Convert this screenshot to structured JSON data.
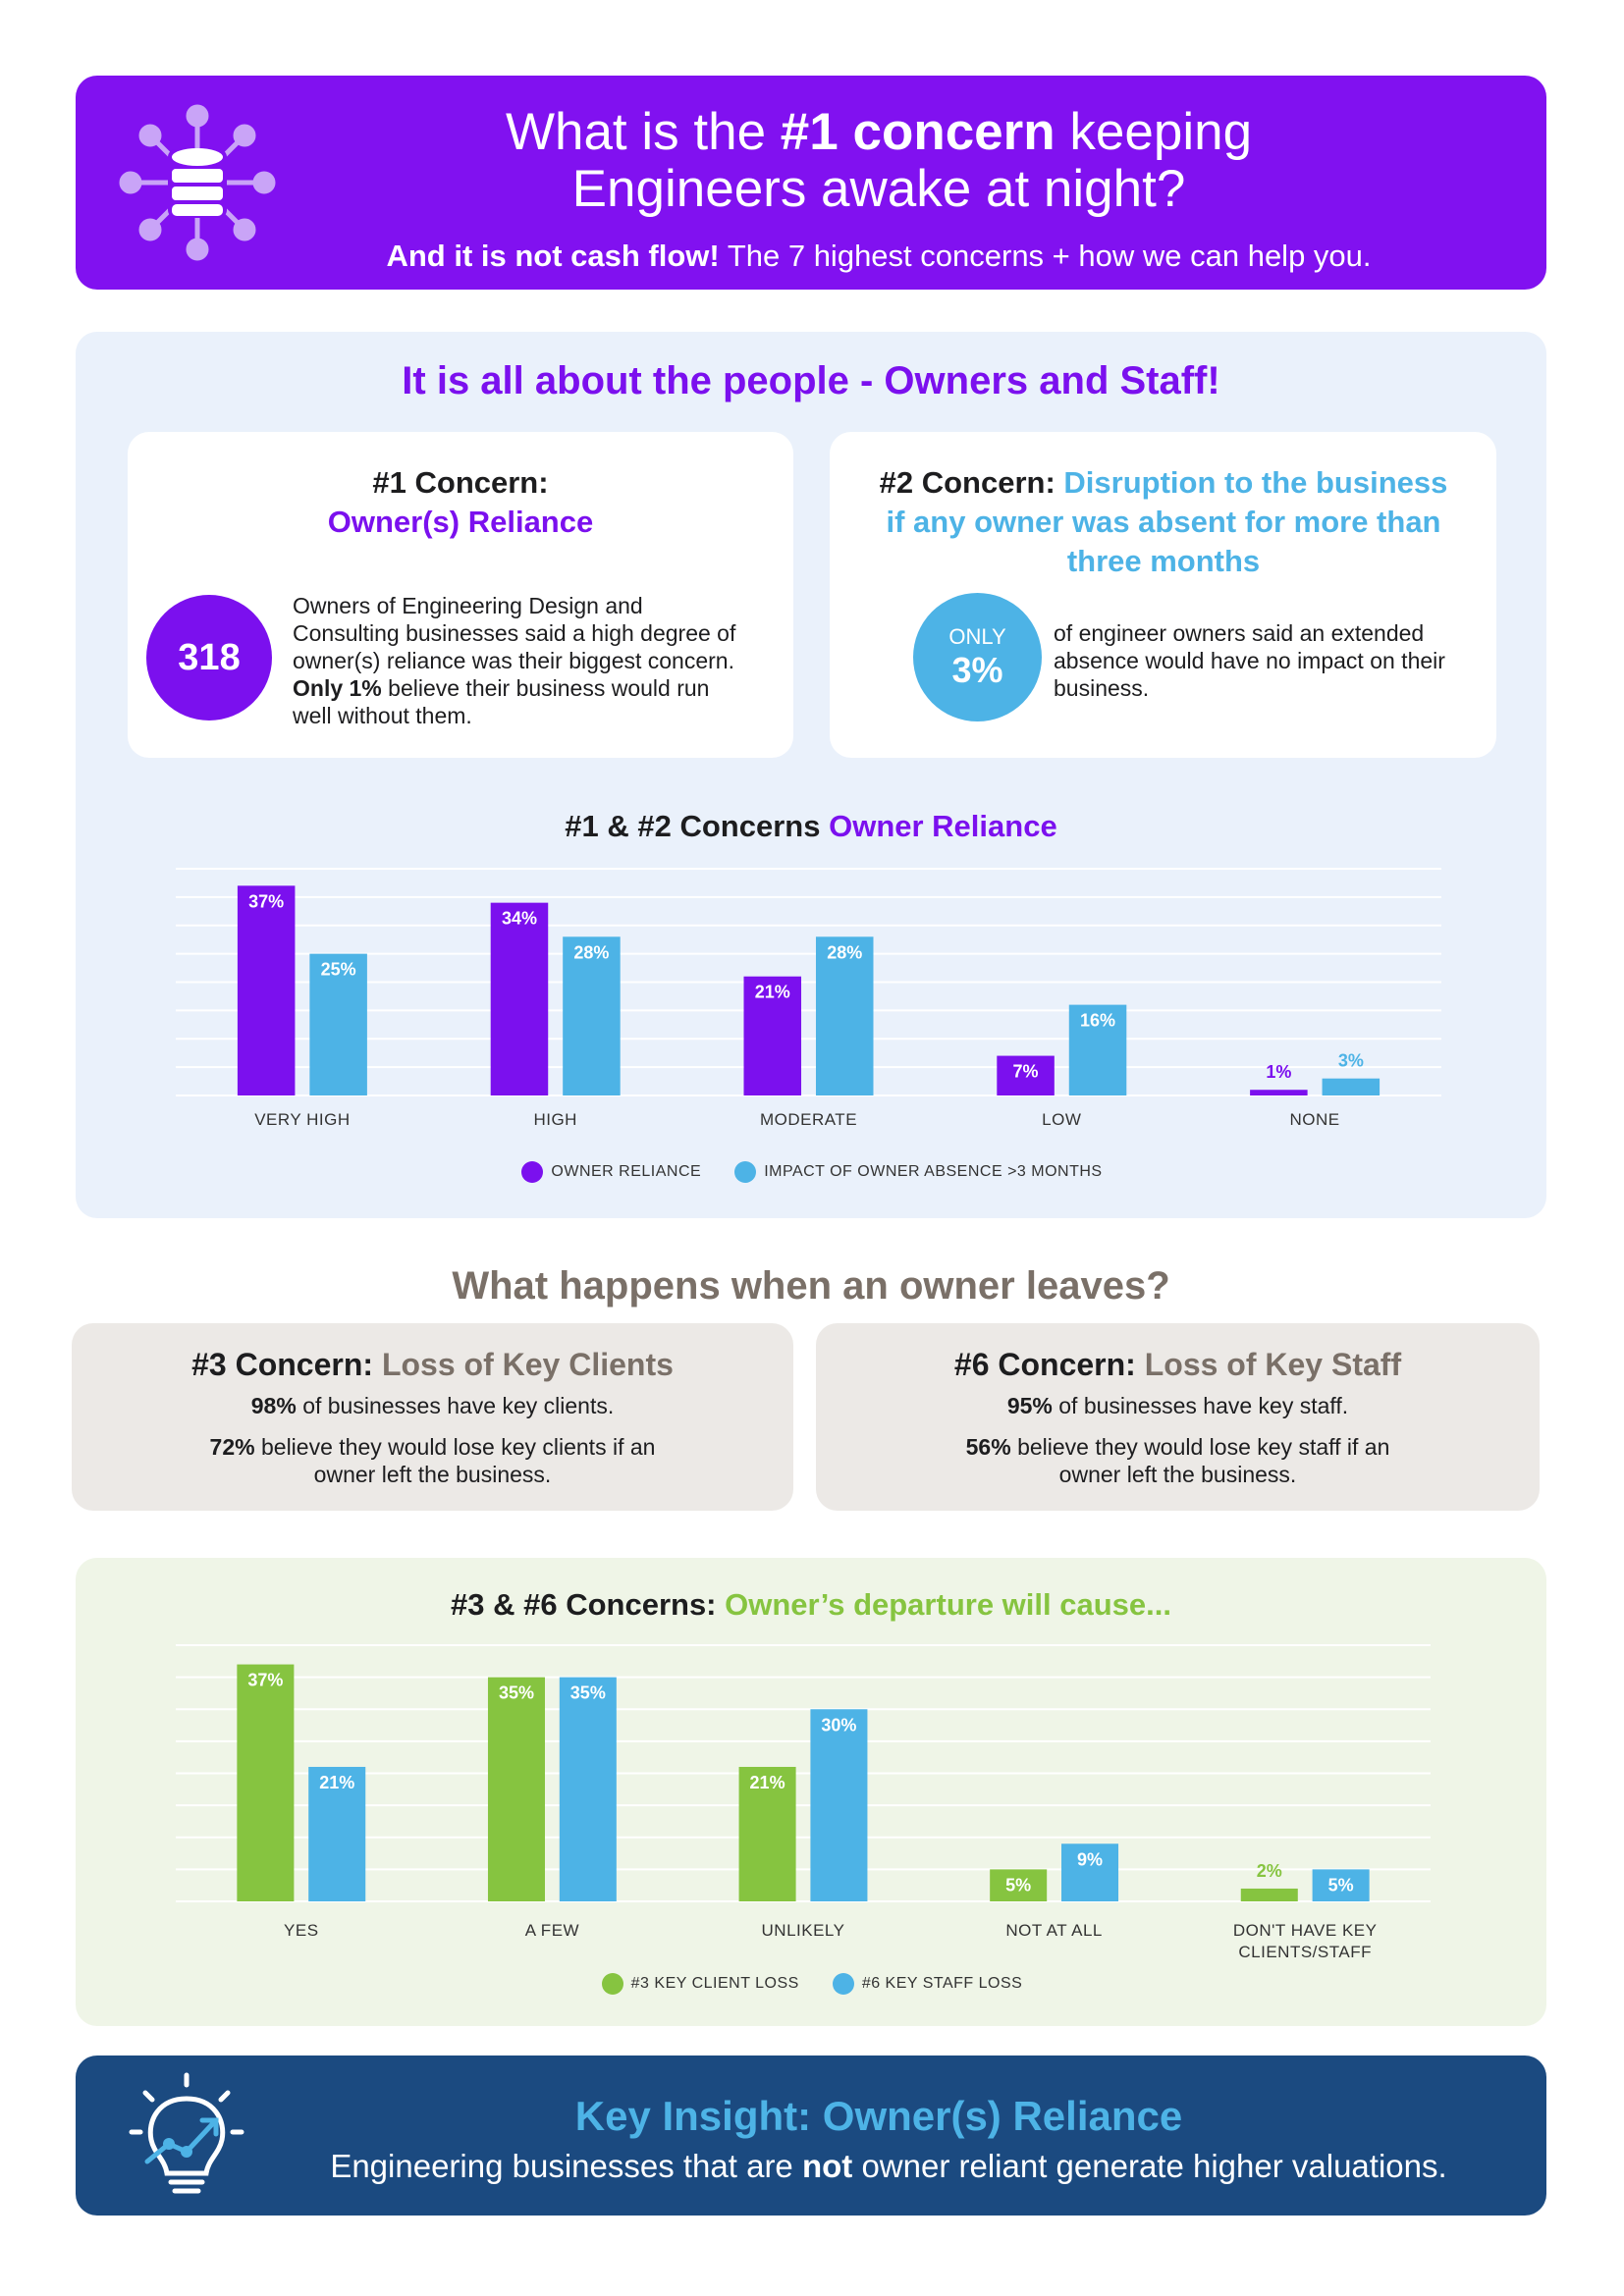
{
  "header": {
    "title_before": "What is the ",
    "title_bold": "#1 concern",
    "title_after": " keeping Engineers awake at night?",
    "subtitle_bold": "And it is not cash flow!",
    "subtitle_rest": " The 7 highest concerns + how we can help you."
  },
  "section1": {
    "heading": "It is all about the people - Owners and Staff!",
    "card1": {
      "label": "#1 Concern:",
      "title": "Owner(s) Reliance",
      "badge": "318",
      "text_before": "Owners of Engineering Design and Consulting businesses said a high degree of owner(s) reliance was their biggest concern.",
      "text_bold": "Only 1%",
      "text_after": "believe their business would run well without them."
    },
    "card2": {
      "label": "#2 Concern:",
      "title": "Disruption to the business if any owner was absent for more than three months",
      "badge_top": "ONLY",
      "badge": "3%",
      "text": "of engineer owners said an extended absence would have no impact on their business."
    }
  },
  "section2": {
    "heading": "What happens when an owner leaves?",
    "cards": [
      {
        "label": "#3 Concern:",
        "title": "Loss of Key Clients",
        "stat1": "98%",
        "stat1_text": "of businesses have key clients.",
        "stat2": "72%",
        "stat2_text": "believe they would lose key clients if an owner left the business."
      },
      {
        "label": "#6 Concern:",
        "title": "Loss of Key Staff",
        "stat1": "95%",
        "stat1_text": "of businesses have key staff.",
        "stat2": "56%",
        "stat2_text": "believe they would lose key staff if an owner left the business."
      }
    ]
  },
  "footer": {
    "title": "Key Insight: Owner(s) Reliance",
    "text_before": "Engineering businesses that are",
    "text_bold": "not",
    "text_after": "owner reliant generate higher valuations."
  },
  "chart_data": [
    {
      "type": "bar",
      "title": "#1 & #2 Concerns",
      "title_highlight": "Owner Reliance",
      "categories": [
        "VERY HIGH",
        "HIGH",
        "MODERATE",
        "LOW",
        "NONE"
      ],
      "series": [
        {
          "name": "OWNER RELIANCE",
          "color": "#7b10ee",
          "values": [
            37,
            34,
            21,
            7,
            1
          ],
          "value_labels": [
            "37%",
            "34%",
            "21%",
            "7%",
            "1%"
          ]
        },
        {
          "name": "IMPACT OF OWNER ABSENCE >3 MONTHS",
          "color": "#4db3e6",
          "values": [
            25,
            28,
            28,
            16,
            3
          ],
          "value_labels": [
            "25%",
            "28%",
            "28%",
            "16%",
            "3%"
          ]
        }
      ],
      "ylim": [
        0,
        40
      ],
      "yticks": [
        0,
        5,
        10,
        15,
        20,
        25,
        30,
        35,
        40
      ],
      "grid": true
    },
    {
      "type": "bar",
      "title": "#3 & #6 Concerns:",
      "title_highlight": "Owner’s departure will cause...",
      "categories": [
        "YES",
        "A FEW",
        "UNLIKELY",
        "NOT AT ALL",
        "DON'T HAVE KEY CLIENTS/STAFF"
      ],
      "series": [
        {
          "name": "#3 KEY CLIENT LOSS",
          "color": "#86c440",
          "values": [
            37,
            35,
            21,
            5,
            2
          ],
          "value_labels": [
            "37%",
            "35%",
            "21%",
            "5%",
            "2%"
          ]
        },
        {
          "name": "#6 KEY STAFF LOSS",
          "color": "#4db3e6",
          "values": [
            21,
            35,
            30,
            9,
            5
          ],
          "value_labels": [
            "21%",
            "35%",
            "30%",
            "9%",
            "5%"
          ]
        }
      ],
      "ylim": [
        0,
        40
      ],
      "yticks": [
        0,
        5,
        10,
        15,
        20,
        25,
        30,
        35,
        40
      ],
      "grid": true
    }
  ]
}
